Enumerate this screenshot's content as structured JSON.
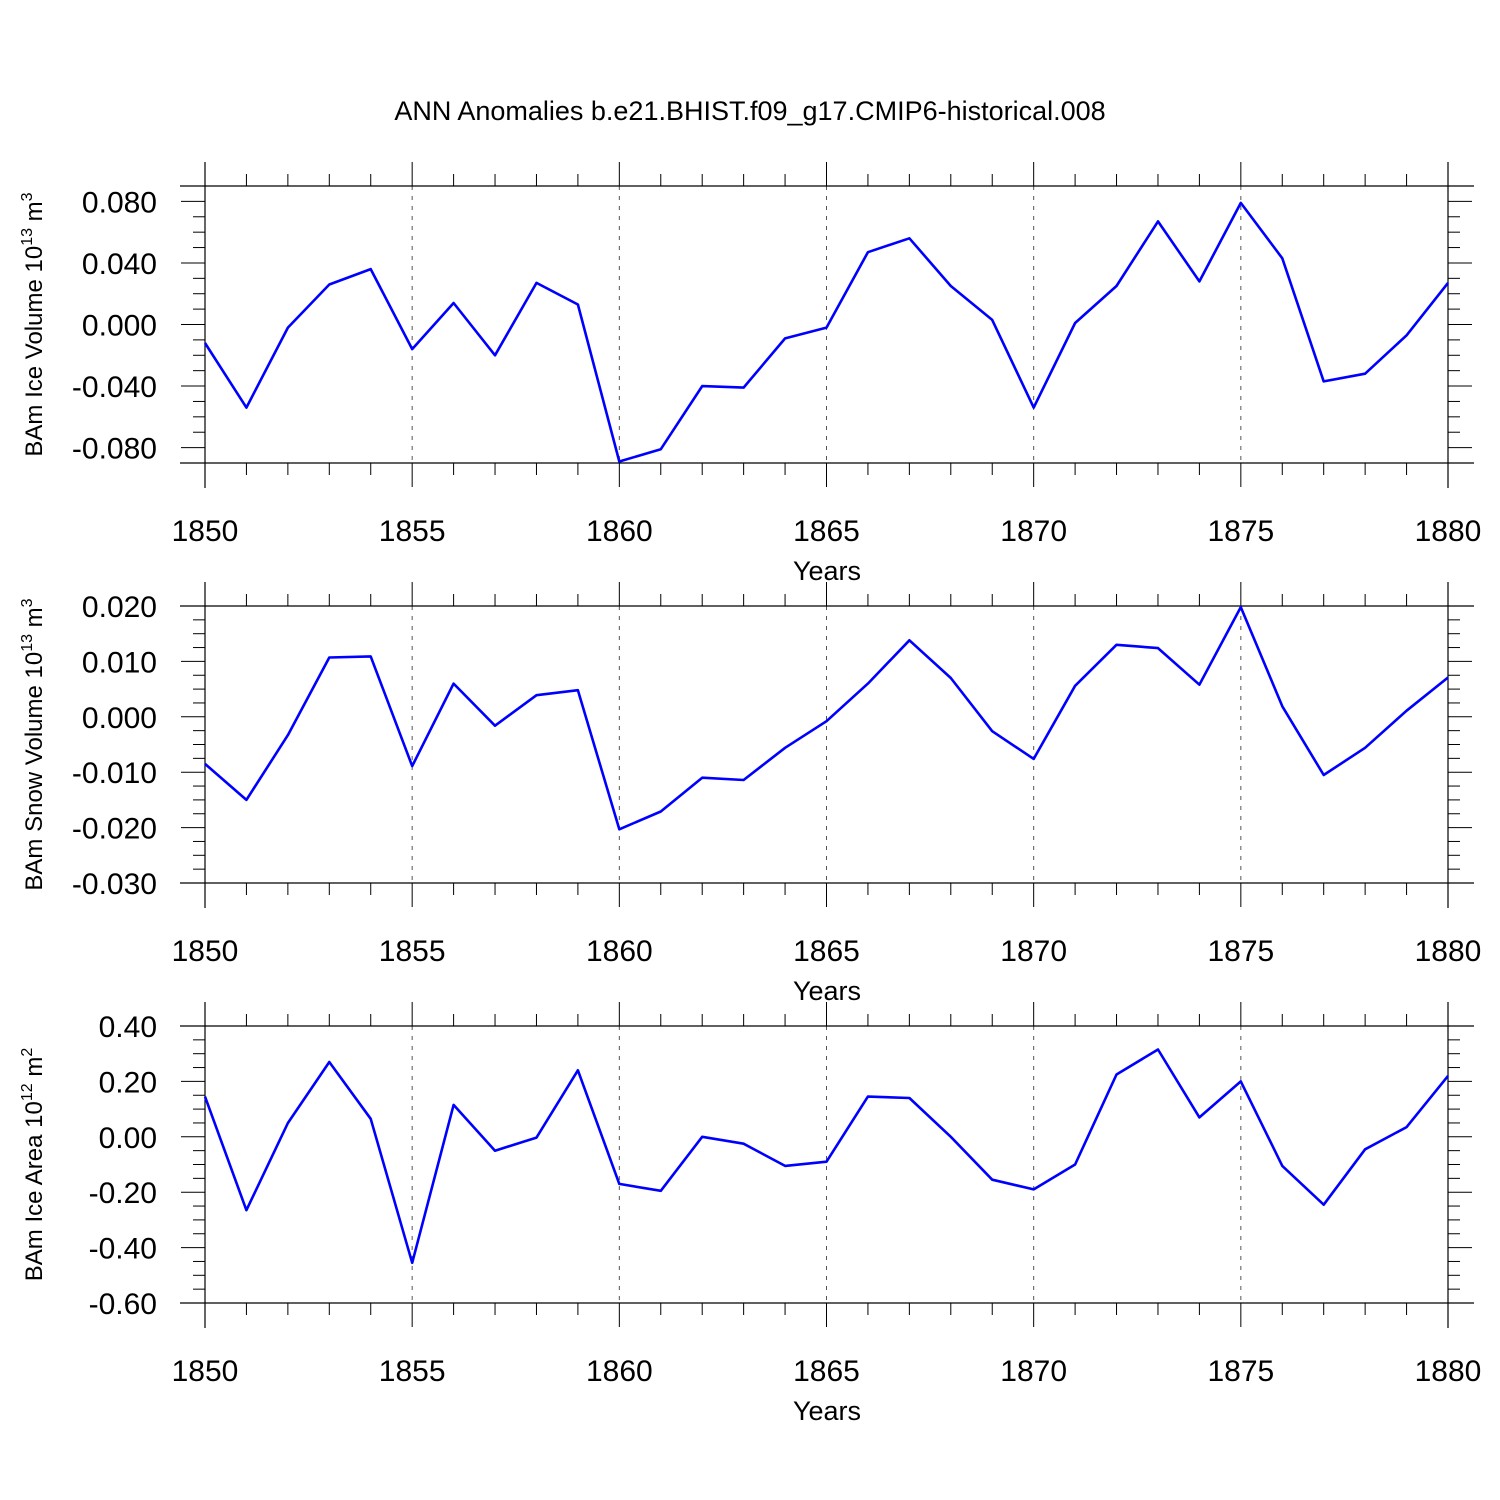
{
  "title": "ANN Anomalies b.e21.BHIST.f09_g17.CMIP6-historical.008",
  "line_color": "#0000ff",
  "chart_data": [
    {
      "type": "line",
      "ylabel": "BAm Ice Volume 10",
      "ylabel_exp": "13",
      "ylabel_unit": " m",
      "ylabel_unit_exp": "3",
      "xlabel": "Years",
      "xlim": [
        1850,
        1880
      ],
      "ylim": [
        -0.09,
        0.09
      ],
      "xticks": [
        1850,
        1855,
        1860,
        1865,
        1870,
        1875,
        1880
      ],
      "xtick_labels": [
        "1850",
        "1855",
        "1860",
        "1865",
        "1870",
        "1875",
        "1880"
      ],
      "yticks": [
        0.08,
        0.04,
        0.0,
        -0.04,
        -0.08
      ],
      "ytick_labels": [
        "0.080",
        "0.040",
        "0.000",
        "-0.040",
        "-0.080"
      ],
      "x": [
        1850,
        1851,
        1852,
        1853,
        1854,
        1855,
        1856,
        1857,
        1858,
        1859,
        1860,
        1861,
        1862,
        1863,
        1864,
        1865,
        1866,
        1867,
        1868,
        1869,
        1870,
        1871,
        1872,
        1873,
        1874,
        1875,
        1876,
        1877,
        1878,
        1879,
        1880
      ],
      "series": [
        {
          "name": "BAm Ice Volume",
          "values": [
            -0.012,
            -0.054,
            -0.002,
            0.026,
            0.036,
            -0.016,
            0.014,
            -0.02,
            0.027,
            0.013,
            -0.089,
            -0.081,
            -0.04,
            -0.041,
            -0.009,
            -0.002,
            0.047,
            0.056,
            0.025,
            0.003,
            -0.054,
            0.001,
            0.025,
            0.067,
            0.028,
            0.079,
            0.043,
            -0.037,
            -0.032,
            -0.007,
            0.027
          ]
        }
      ]
    },
    {
      "type": "line",
      "ylabel": "BAm Snow Volume 10",
      "ylabel_exp": "13",
      "ylabel_unit": " m",
      "ylabel_unit_exp": "3",
      "xlabel": "Years",
      "xlim": [
        1850,
        1880
      ],
      "ylim": [
        -0.03,
        0.02
      ],
      "xticks": [
        1850,
        1855,
        1860,
        1865,
        1870,
        1875,
        1880
      ],
      "xtick_labels": [
        "1850",
        "1855",
        "1860",
        "1865",
        "1870",
        "1875",
        "1880"
      ],
      "yticks": [
        0.02,
        0.01,
        0.0,
        -0.01,
        -0.02,
        -0.03
      ],
      "ytick_labels": [
        "0.020",
        "0.010",
        "0.000",
        "-0.010",
        "-0.020",
        "-0.030"
      ],
      "x": [
        1850,
        1851,
        1852,
        1853,
        1854,
        1855,
        1856,
        1857,
        1858,
        1859,
        1860,
        1861,
        1862,
        1863,
        1864,
        1865,
        1866,
        1867,
        1868,
        1869,
        1870,
        1871,
        1872,
        1873,
        1874,
        1875,
        1876,
        1877,
        1878,
        1879,
        1880
      ],
      "series": [
        {
          "name": "BAm Snow Volume",
          "values": [
            -0.0085,
            -0.015,
            -0.0033,
            0.0107,
            0.0109,
            -0.0089,
            0.006,
            -0.0016,
            0.0039,
            0.0048,
            -0.0203,
            -0.0171,
            -0.011,
            -0.0114,
            -0.0056,
            -0.0008,
            0.006,
            0.0138,
            0.007,
            -0.0026,
            -0.0076,
            0.0056,
            0.013,
            0.0124,
            0.0058,
            0.0198,
            0.0019,
            -0.0105,
            -0.0056,
            0.0011,
            0.0071
          ]
        }
      ]
    },
    {
      "type": "line",
      "ylabel": "BAm Ice Area 10",
      "ylabel_exp": "12",
      "ylabel_unit": " m",
      "ylabel_unit_exp": "2",
      "xlabel": "Years",
      "xlim": [
        1850,
        1880
      ],
      "ylim": [
        -0.6,
        0.4
      ],
      "xticks": [
        1850,
        1855,
        1860,
        1865,
        1870,
        1875,
        1880
      ],
      "xtick_labels": [
        "1850",
        "1855",
        "1860",
        "1865",
        "1870",
        "1875",
        "1880"
      ],
      "yticks": [
        0.4,
        0.2,
        0.0,
        -0.2,
        -0.4,
        -0.6
      ],
      "ytick_labels": [
        "0.40",
        "0.20",
        "0.00",
        "-0.20",
        "-0.40",
        "-0.60"
      ],
      "x": [
        1850,
        1851,
        1852,
        1853,
        1854,
        1855,
        1856,
        1857,
        1858,
        1859,
        1860,
        1861,
        1862,
        1863,
        1864,
        1865,
        1866,
        1867,
        1868,
        1869,
        1870,
        1871,
        1872,
        1873,
        1874,
        1875,
        1876,
        1877,
        1878,
        1879,
        1880
      ],
      "series": [
        {
          "name": "BAm Ice Area",
          "values": [
            0.145,
            -0.265,
            0.05,
            0.27,
            0.065,
            -0.455,
            0.115,
            -0.05,
            -0.003,
            0.24,
            -0.17,
            -0.195,
            0.0,
            -0.025,
            -0.105,
            -0.09,
            0.145,
            0.14,
            0.0,
            -0.155,
            -0.19,
            -0.1,
            0.225,
            0.315,
            0.07,
            0.2,
            -0.105,
            -0.245,
            -0.045,
            0.035,
            0.22
          ]
        }
      ]
    }
  ]
}
